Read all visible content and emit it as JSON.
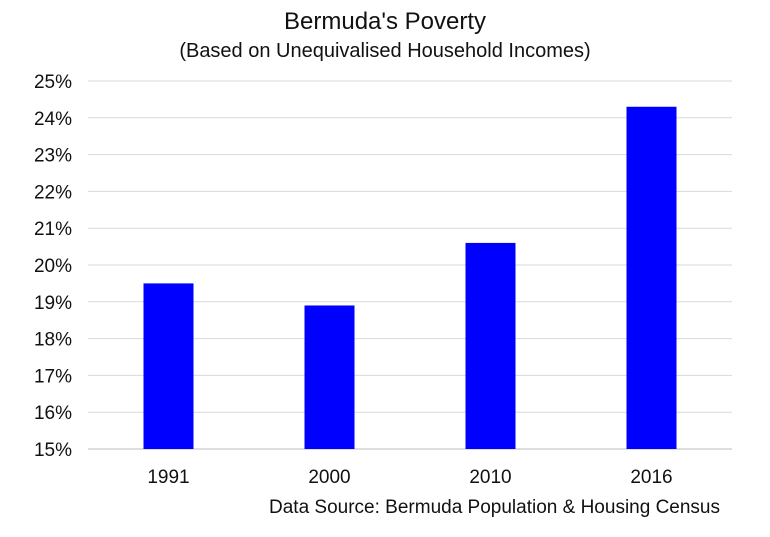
{
  "chart_data": {
    "type": "bar",
    "title": "Bermuda's Poverty",
    "subtitle": "(Based on Unequivalised Household Incomes)",
    "categories": [
      "1991",
      "2000",
      "2010",
      "2016"
    ],
    "values": [
      19.5,
      18.9,
      20.6,
      24.3
    ],
    "ylim": [
      15,
      25
    ],
    "yticks": [
      15,
      16,
      17,
      18,
      19,
      20,
      21,
      22,
      23,
      24,
      25
    ],
    "ytick_suffix": "%",
    "grid": true,
    "bar_color": "#0000ff",
    "source": "Data Source: Bermuda Population & Housing Census"
  }
}
